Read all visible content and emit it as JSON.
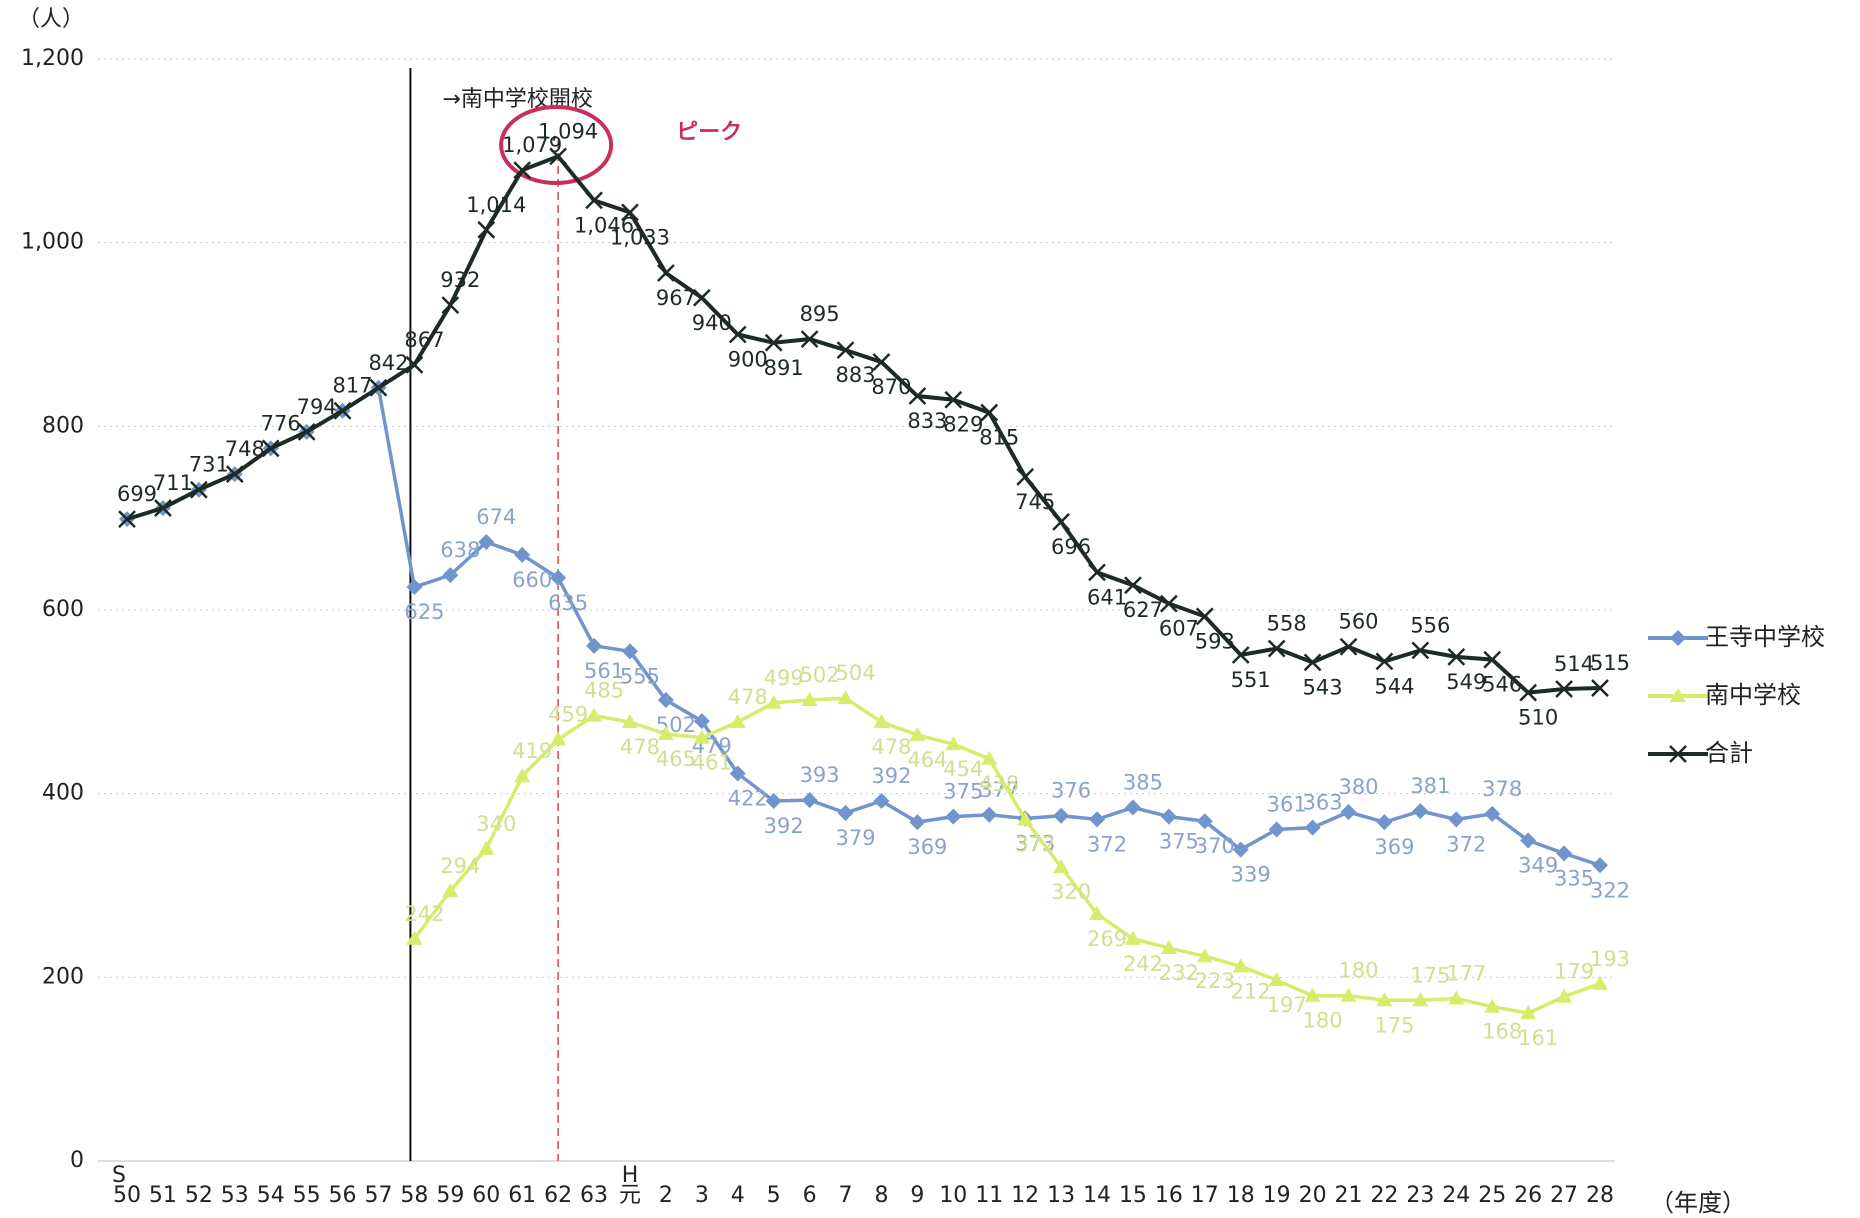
{
  "chart_data": {
    "type": "line",
    "y_unit_label": "（人）",
    "x_unit_label": "（年度）",
    "x_era_labels": [
      "S",
      "H"
    ],
    "opening_annotation": "→南中学校開校",
    "peak_annotation": "ピーク",
    "categories": [
      "50",
      "51",
      "52",
      "53",
      "54",
      "55",
      "56",
      "57",
      "58",
      "59",
      "60",
      "61",
      "62",
      "63",
      "元",
      "2",
      "3",
      "4",
      "5",
      "6",
      "7",
      "8",
      "9",
      "10",
      "11",
      "12",
      "13",
      "14",
      "15",
      "16",
      "17",
      "18",
      "19",
      "20",
      "21",
      "22",
      "23",
      "24",
      "25",
      "26",
      "27",
      "28"
    ],
    "ylim": [
      0,
      1200
    ],
    "yticks": [
      0,
      200,
      400,
      600,
      800,
      {
        "value": 1000,
        "label": "1,000"
      },
      {
        "value": 1200,
        "label": "1,200"
      }
    ],
    "grid": true,
    "legend": "right",
    "series": [
      {
        "name": "王寺中学校",
        "color": "#6f95cc",
        "marker": "diamond",
        "values": [
          699,
          711,
          731,
          748,
          776,
          794,
          817,
          842,
          625,
          638,
          674,
          660,
          635,
          561,
          555,
          502,
          479,
          422,
          392,
          393,
          379,
          392,
          369,
          375,
          377,
          373,
          376,
          372,
          385,
          375,
          370,
          339,
          361,
          363,
          380,
          369,
          381,
          372,
          378,
          349,
          335,
          322
        ]
      },
      {
        "name": "南中学校",
        "color": "#d6ec6a",
        "marker": "triangle",
        "values": [
          null,
          null,
          null,
          null,
          null,
          null,
          null,
          null,
          242,
          294,
          340,
          419,
          459,
          485,
          478,
          465,
          461,
          478,
          499,
          502,
          504,
          478,
          464,
          454,
          438,
          372,
          320,
          269,
          242,
          232,
          223,
          212,
          197,
          180,
          180,
          175,
          175,
          177,
          168,
          161,
          179,
          193
        ]
      },
      {
        "name": "合計",
        "color": "#1d2b24",
        "marker": "x",
        "values": [
          699,
          711,
          731,
          748,
          776,
          794,
          817,
          842,
          867,
          932,
          1014,
          1079,
          1094,
          1046,
          1033,
          967,
          940,
          900,
          891,
          895,
          883,
          870,
          833,
          829,
          815,
          745,
          696,
          641,
          627,
          607,
          593,
          551,
          558,
          543,
          560,
          544,
          556,
          549,
          546,
          510,
          514,
          515
        ],
        "value_labels": [
          "699",
          "711",
          "731",
          "748",
          "776",
          "794",
          "817",
          "842",
          "867",
          "932",
          "1,014",
          "1,079",
          "1,094",
          "1,046",
          "1,033",
          "967",
          "940",
          "900",
          "891",
          "895",
          "883",
          "870",
          "833",
          "829",
          "815",
          "745",
          "696",
          "641",
          "627",
          "607",
          "593",
          "551",
          "558",
          "543",
          "560",
          "544",
          "556",
          "549",
          "546",
          "510",
          "514",
          "515"
        ]
      }
    ]
  }
}
